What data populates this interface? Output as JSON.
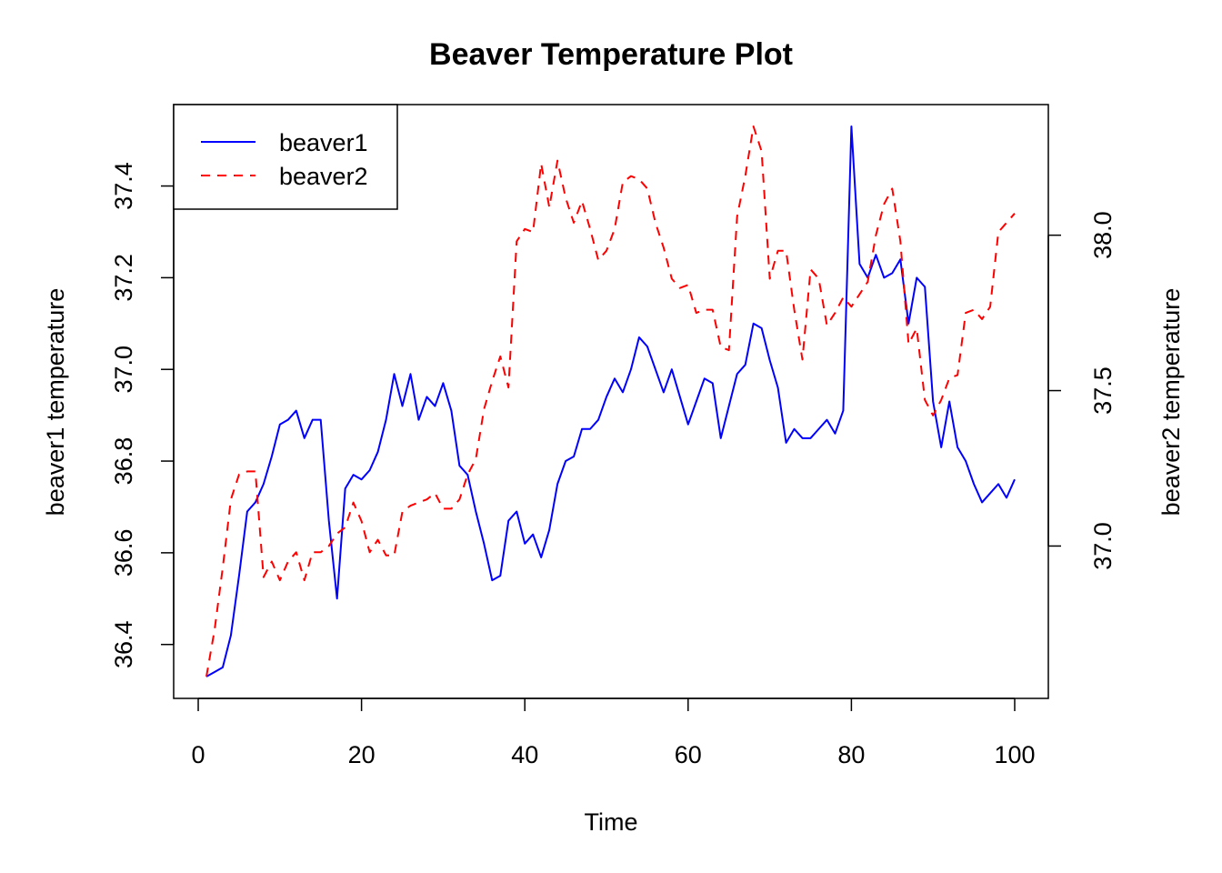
{
  "chart_data": {
    "type": "line",
    "title": "Beaver Temperature Plot",
    "xlabel": "Time",
    "ylabel": "beaver1 temperature",
    "y2label": "beaver2 temperature",
    "xlim": [
      1,
      100
    ],
    "ylim": [
      36.33,
      37.53
    ],
    "y2lim": [
      36.58,
      38.35
    ],
    "xticks": [
      "0",
      "20",
      "40",
      "60",
      "80",
      "100"
    ],
    "yticks": [
      "36.4",
      "36.6",
      "36.8",
      "37.0",
      "37.2",
      "37.4"
    ],
    "y2ticks": [
      "37.0",
      "37.5",
      "38.0"
    ],
    "legend_position": "top-left",
    "grid": false,
    "series": [
      {
        "name": "beaver1",
        "axis": "left",
        "color": "#0000ff",
        "dash": "solid",
        "values": [
          36.33,
          36.34,
          36.35,
          36.42,
          36.55,
          36.69,
          36.71,
          36.75,
          36.81,
          36.88,
          36.89,
          36.91,
          36.85,
          36.89,
          36.89,
          36.67,
          36.5,
          36.74,
          36.77,
          36.76,
          36.78,
          36.82,
          36.89,
          36.99,
          36.92,
          36.99,
          36.89,
          36.94,
          36.92,
          36.97,
          36.91,
          36.79,
          36.77,
          36.69,
          36.62,
          36.54,
          36.55,
          36.67,
          36.69,
          36.62,
          36.64,
          36.59,
          36.65,
          36.75,
          36.8,
          36.81,
          36.87,
          36.87,
          36.89,
          36.94,
          36.98,
          36.95,
          37.0,
          37.07,
          37.05,
          37.0,
          36.95,
          37.0,
          36.94,
          36.88,
          36.93,
          36.98,
          36.97,
          36.85,
          36.92,
          36.99,
          37.01,
          37.1,
          37.09,
          37.02,
          36.96,
          36.84,
          36.87,
          36.85,
          36.85,
          36.87,
          36.89,
          36.86,
          36.91,
          37.53,
          37.23,
          37.2,
          37.25,
          37.2,
          37.21,
          37.24,
          37.1,
          37.2,
          37.18,
          36.93,
          36.83,
          36.93,
          36.83,
          36.8,
          36.75,
          36.71,
          36.73,
          36.75,
          36.72,
          36.76
        ]
      },
      {
        "name": "beaver2",
        "axis": "right",
        "color": "#ff0000",
        "dash": "dashed",
        "values": [
          36.58,
          36.73,
          36.93,
          37.15,
          37.23,
          37.24,
          37.24,
          36.9,
          36.95,
          36.89,
          36.95,
          36.98,
          36.89,
          36.98,
          36.98,
          37.0,
          37.04,
          37.06,
          37.14,
          37.08,
          36.98,
          37.02,
          36.97,
          36.97,
          37.11,
          37.13,
          37.14,
          37.15,
          37.17,
          37.12,
          37.12,
          37.15,
          37.23,
          37.28,
          37.44,
          37.53,
          37.61,
          37.51,
          37.98,
          38.02,
          38.01,
          38.23,
          38.09,
          38.24,
          38.12,
          38.04,
          38.11,
          38.02,
          37.92,
          37.95,
          38.02,
          38.17,
          38.19,
          38.18,
          38.15,
          38.04,
          37.96,
          37.86,
          37.83,
          37.84,
          37.75,
          37.76,
          37.76,
          37.64,
          37.63,
          38.06,
          38.19,
          38.35,
          38.27,
          37.86,
          37.95,
          37.95,
          37.76,
          37.6,
          37.89,
          37.86,
          37.71,
          37.75,
          37.8,
          37.77,
          37.81,
          37.85,
          38.0,
          38.1,
          38.15,
          37.98,
          37.65,
          37.7,
          37.47,
          37.42,
          37.47,
          37.54,
          37.55,
          37.75,
          37.76,
          37.73,
          37.77,
          38.01,
          38.04,
          38.07
        ]
      }
    ]
  }
}
